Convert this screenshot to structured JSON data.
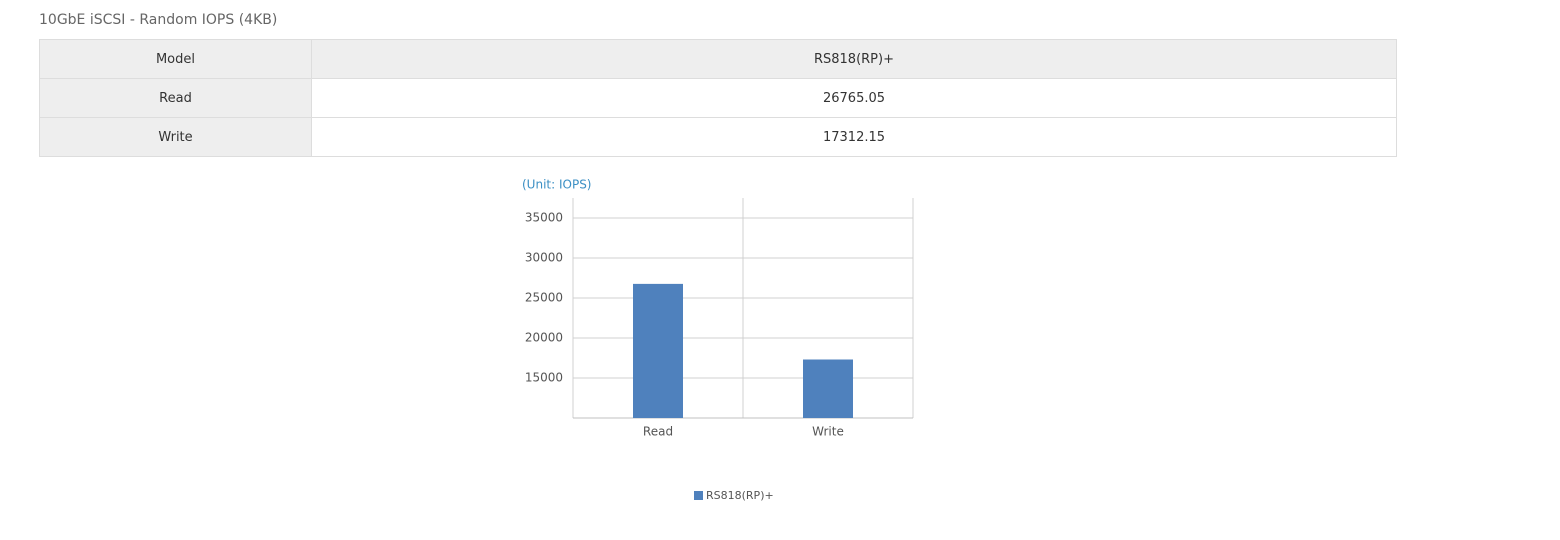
{
  "title": "10GbE iSCSI - Random IOPS (4KB)",
  "table": {
    "header": [
      "Model",
      "RS818(RP)+"
    ],
    "rows": [
      [
        "Read",
        26765.05
      ],
      [
        "Write",
        17312.15
      ]
    ]
  },
  "chart_data": {
    "type": "bar",
    "unit_label": "(Unit: IOPS)",
    "categories": [
      "Read",
      "Write"
    ],
    "series": [
      {
        "name": "RS818(RP)+",
        "color": "#4f81bd",
        "values": [
          26765.05,
          17312.15
        ]
      }
    ],
    "ylim": [
      10000,
      37500
    ],
    "yticks": [
      15000,
      20000,
      25000,
      30000,
      35000
    ],
    "grid": true,
    "legend": "bottom"
  }
}
